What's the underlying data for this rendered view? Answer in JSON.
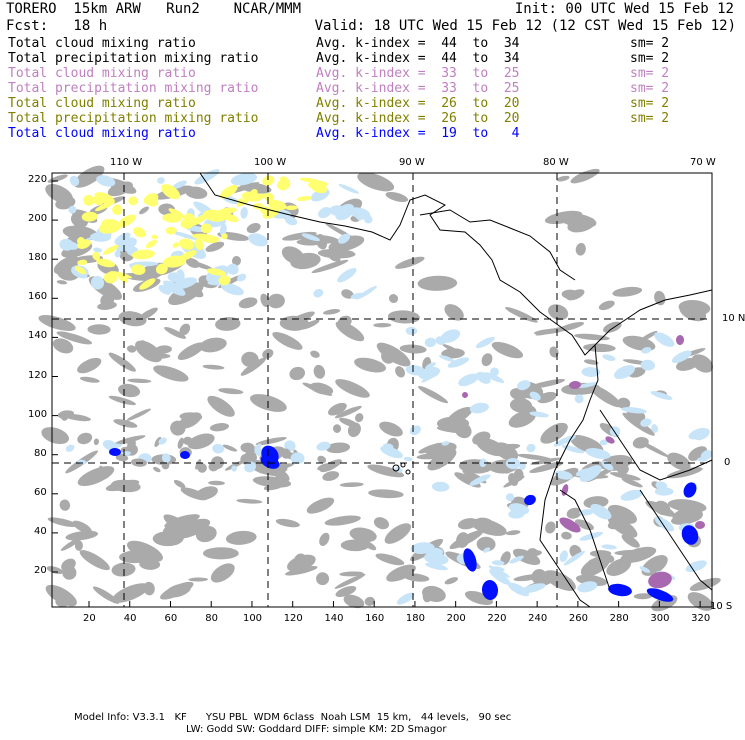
{
  "header": {
    "title": "TORERO  15km ARW   Run2    NCAR/MMM",
    "init": "Init: 00 UTC Wed 15 Feb 12",
    "fcst": "Fcst:   18 h",
    "valid": "Valid: 18 UTC Wed 15 Feb 12 (12 CST Wed 15 Feb 12)"
  },
  "legend": [
    {
      "field": "Total cloud mixing ratio",
      "range": "Avg. k-index =  44  to  34",
      "sm": "sm= 2",
      "color": "#000000"
    },
    {
      "field": "Total precipitation mixing ratio",
      "range": "Avg. k-index =  44  to  34",
      "sm": "sm= 2",
      "color": "#000000"
    },
    {
      "field": "Total cloud mixing ratio",
      "range": "Avg. k-index =  33  to  25",
      "sm": "sm= 2",
      "color": "#c080c0"
    },
    {
      "field": "Total precipitation mixing ratio",
      "range": "Avg. k-index =  33  to  25",
      "sm": "sm= 2",
      "color": "#c080c0"
    },
    {
      "field": "Total cloud mixing ratio",
      "range": "Avg. k-index =  26  to  20",
      "sm": "sm= 2",
      "color": "#808000"
    },
    {
      "field": "Total precipitation mixing ratio",
      "range": "Avg. k-index =  26  to  20",
      "sm": "sm= 2",
      "color": "#808000"
    },
    {
      "field": "Total cloud mixing ratio",
      "range": "Avg. k-index =  19  to   4",
      "sm": "",
      "color": "#0000ff"
    }
  ],
  "axes": {
    "lon_labels": [
      "110 W",
      "100 W",
      "90 W",
      "80 W",
      "70 W"
    ],
    "lat_labels": [
      "10 N",
      "0",
      "10 S"
    ],
    "x_ticks": [
      "20",
      "40",
      "60",
      "80",
      "100",
      "120",
      "140",
      "160",
      "180",
      "200",
      "220",
      "240",
      "260",
      "280",
      "300",
      "320"
    ],
    "y_ticks": [
      "20",
      "40",
      "60",
      "80",
      "100",
      "120",
      "140",
      "160",
      "180",
      "200",
      "220"
    ]
  },
  "footer": {
    "line1": "Model Info: V3.3.1   KF      YSU PBL  WDM 6class  Noah LSM  15 km,   44 levels,   90 sec",
    "line2": "LW: Godd SW: Goddard DIFF: simple KM: 2D Smagor"
  },
  "colors": {
    "gray": "#aaaaaa",
    "lightblue": "#c8e4f8",
    "blue": "#0010ff",
    "purple": "#a868b0",
    "yellow": "#ffff70"
  }
}
